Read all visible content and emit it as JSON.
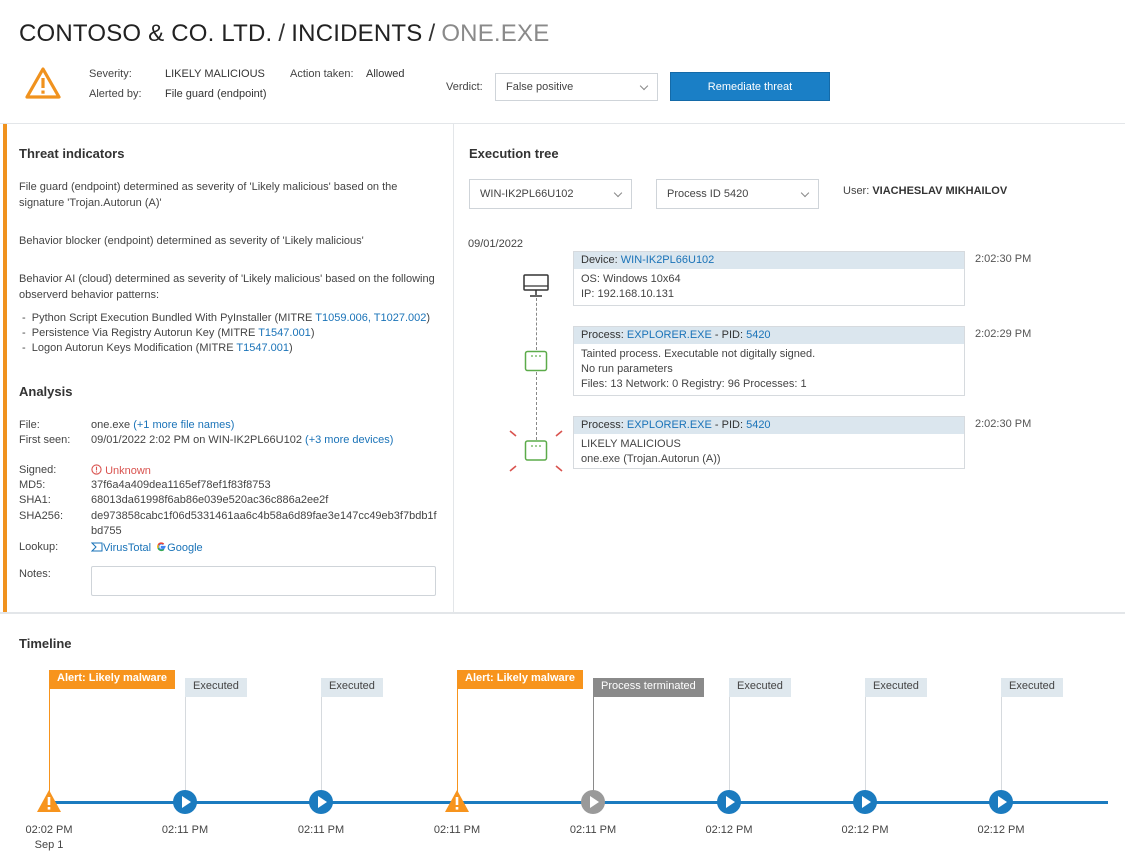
{
  "breadcrumb": {
    "org": "CONTOSO & CO. LTD.",
    "section": "INCIDENTS",
    "current": "ONE.EXE",
    "separator": "/"
  },
  "header": {
    "severity_label": "Severity:",
    "severity_value": "LIKELY MALICIOUS",
    "alerted_by_label": "Alerted by:",
    "alerted_by_value": "File guard (endpoint)",
    "action_label": "Action taken:",
    "action_value": "Allowed",
    "verdict_label": "Verdict:",
    "verdict_value": "False positive",
    "remediate_label": "Remediate threat"
  },
  "threat_indicators": {
    "title": "Threat indicators",
    "items": [
      "File guard (endpoint) determined as severity of 'Likely malicious' based on the signature 'Trojan.Autorun (A)'",
      "Behavior blocker (endpoint) determined as severity of 'Likely malicious'",
      "Behavior AI (cloud) determined as severity of 'Likely malicious' based on the following observerd behavior patterns:"
    ],
    "patterns": [
      {
        "text": "Python Script Execution Bundled With PyInstaller (MITRE ",
        "links": "T1059.006, T1027.002",
        "close": ")"
      },
      {
        "text": "Persistence Via Registry Autorun Key (MITRE ",
        "links": "T1547.001",
        "close": ")"
      },
      {
        "text": "Logon Autorun Keys Modification (MITRE ",
        "links": "T1547.001",
        "close": ")"
      }
    ]
  },
  "analysis": {
    "title": "Analysis",
    "file_label": "File:",
    "file_value": "one.exe",
    "file_more": "(+1 more file names)",
    "first_seen_label": "First seen:",
    "first_seen_value": "09/01/2022 2:02 PM on WIN-IK2PL66U102",
    "first_seen_more": "(+3 more devices)",
    "signed_label": "Signed:",
    "signed_value": "Unknown",
    "md5_label": "MD5:",
    "md5_value": "37f6a4a409dea1165ef78ef1f83f8753",
    "sha1_label": "SHA1:",
    "sha1_value": "68013da61998f6ab86e039e520ac36c886a2ee2f",
    "sha256_label": "SHA256:",
    "sha256_line1": "de973858cabc1f06d5331461aa6c4b58a6d89fae3e147cc49eb3f7bdb1f",
    "sha256_line2": "bd755",
    "lookup_label": "Lookup:",
    "lookup_virustotal": "VirusTotal",
    "lookup_google": "Google",
    "notes_label": "Notes:"
  },
  "execution_tree": {
    "title": "Execution tree",
    "device_select": "WIN-IK2PL66U102",
    "process_select": "Process ID 5420",
    "user_label": "User:",
    "user_value": "VIACHESLAV MIKHAILOV",
    "date": "09/01/2022",
    "nodes": [
      {
        "head_label": "Device:",
        "head_link": "WIN-IK2PL66U102",
        "lines": [
          "OS: Windows 10x64",
          "IP: 192.168.10.131"
        ],
        "time": "2:02:30 PM"
      },
      {
        "head_label": "Process:",
        "head_link": "EXPLORER.EXE",
        "pid_label": " - PID:",
        "pid_value": "5420",
        "lines": [
          "Tainted process. Executable not digitally signed.",
          "No run parameters",
          "Files: 13 Network: 0 Registry: 96 Processes: 1"
        ],
        "time": "2:02:29 PM"
      },
      {
        "head_label": "Process:",
        "head_link": "EXPLORER.EXE",
        "pid_label": " - PID:",
        "pid_value": "5420",
        "lines": [
          "LIKELY MALICIOUS",
          "one.exe (Trojan.Autorun (A))"
        ],
        "time": "2:02:30 PM"
      }
    ]
  },
  "timeline": {
    "title": "Timeline",
    "events": [
      {
        "tag": "Alert: Likely malware",
        "kind": "alert",
        "time": "02:02 PM",
        "date": "Sep 1"
      },
      {
        "tag": "Executed",
        "kind": "exec",
        "time": "02:11 PM"
      },
      {
        "tag": "Executed",
        "kind": "exec",
        "time": "02:11 PM"
      },
      {
        "tag": "Alert: Likely malware",
        "kind": "alert",
        "time": "02:11 PM"
      },
      {
        "tag": "Process terminated",
        "kind": "term",
        "time": "02:11 PM"
      },
      {
        "tag": "Executed",
        "kind": "exec",
        "time": "02:12 PM"
      },
      {
        "tag": "Executed",
        "kind": "exec",
        "time": "02:12 PM"
      },
      {
        "tag": "Executed",
        "kind": "exec",
        "time": "02:12 PM"
      }
    ]
  },
  "colors": {
    "accent_blue": "#1a7fc6",
    "warning_orange": "#f7941d",
    "alert_red": "#d9534f",
    "node_green": "#5cab4a"
  }
}
